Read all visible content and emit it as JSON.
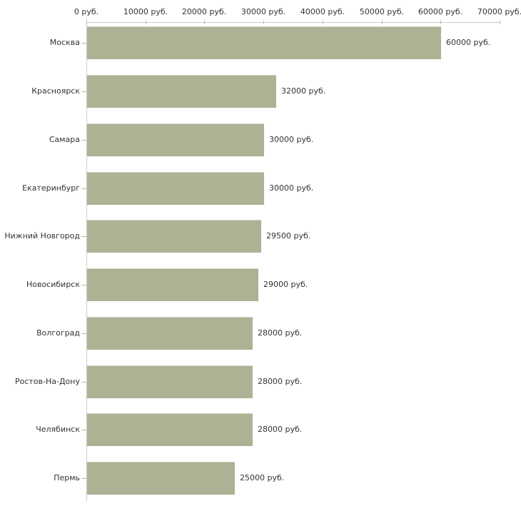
{
  "chart_data": {
    "type": "bar",
    "orientation": "horizontal",
    "title": "",
    "xlabel": "",
    "ylabel": "",
    "unit": "руб.",
    "categories": [
      "Москва",
      "Красноярск",
      "Самара",
      "Екатеринбург",
      "Нижний Новгород",
      "Новосибирск",
      "Волгоград",
      "Ростов-На-Дону",
      "Челябинск",
      "Пермь"
    ],
    "values": [
      60000,
      32000,
      30000,
      30000,
      29500,
      29000,
      28000,
      28000,
      28000,
      25000
    ],
    "value_labels": [
      "60000 руб.",
      "32000 руб.",
      "30000 руб.",
      "30000 руб.",
      "29500 руб.",
      "29000 руб.",
      "28000 руб.",
      "28000 руб.",
      "28000 руб.",
      "25000 руб."
    ],
    "x_axis": {
      "position": "top",
      "range": [
        0,
        70000
      ],
      "ticks": [
        0,
        10000,
        20000,
        30000,
        40000,
        50000,
        60000,
        70000
      ],
      "tick_labels": [
        "0 руб.",
        "10000 руб.",
        "20000 руб.",
        "30000 руб.",
        "40000 руб.",
        "50000 руб.",
        "60000 руб.",
        "70000 руб."
      ]
    },
    "legend": "none",
    "grid": "off",
    "colors": {
      "bar": "#adb295",
      "bar_top_edge": "#ced2c0",
      "axis_line": "#c8c8c2",
      "tick": "#bdc29e",
      "text": "#333333",
      "background": "#ffffff"
    }
  }
}
